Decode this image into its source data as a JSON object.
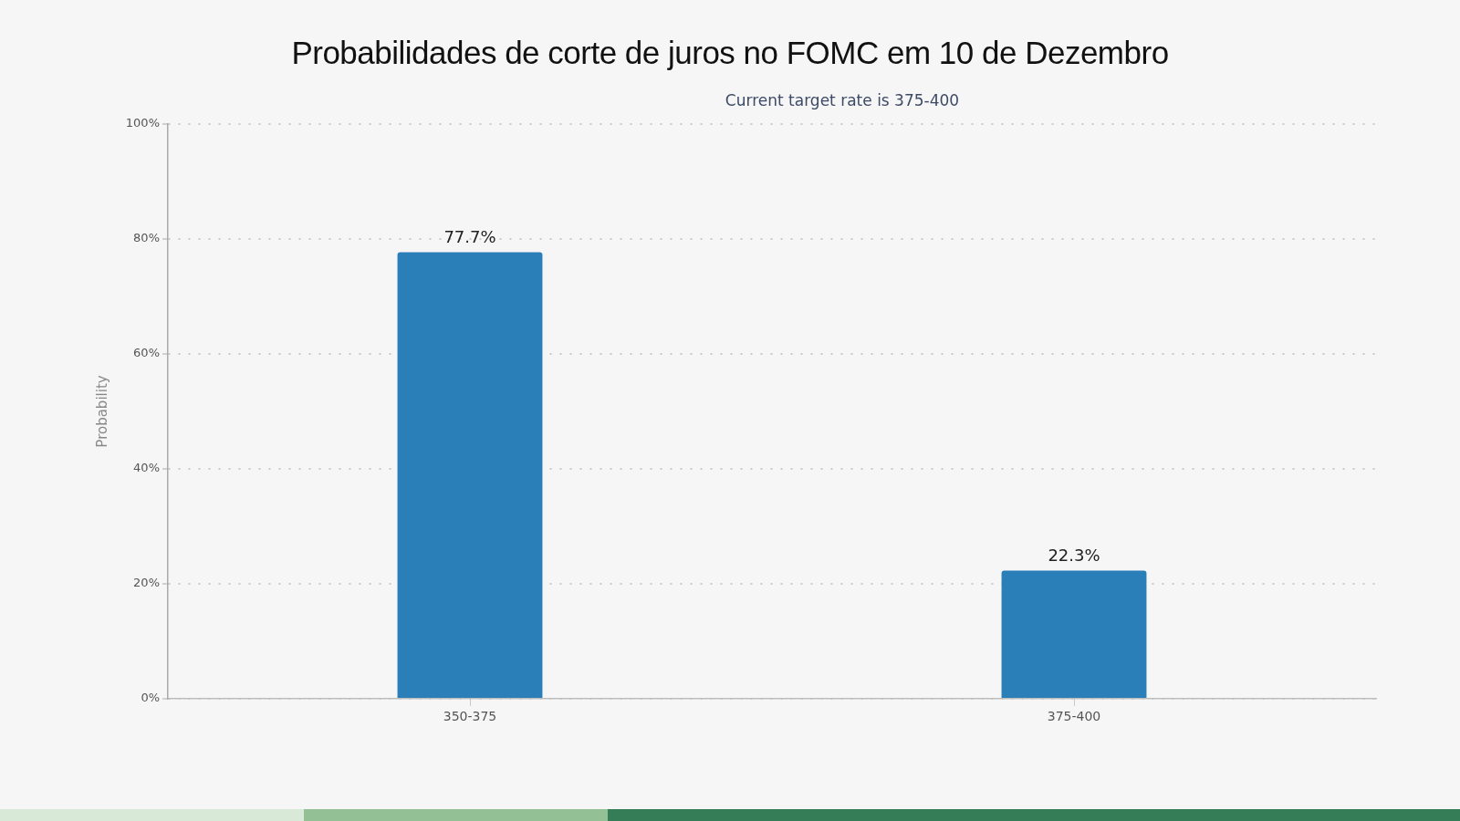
{
  "chart_data": {
    "type": "bar",
    "title": "Probabilidades de corte de juros no FOMC em 10 de Dezembro",
    "subtitle": "Current target rate is 375-400",
    "ylabel": "Probability",
    "categories": [
      "350-375",
      "375-400"
    ],
    "values": [
      77.7,
      22.3
    ],
    "color": "#2a7fb8",
    "value_labels": [
      "77.7%",
      "22.3%"
    ],
    "ylim": [
      0,
      100
    ],
    "yticks": [
      {
        "value": 0,
        "label": "0%"
      },
      {
        "value": 20,
        "label": "20%"
      },
      {
        "value": 40,
        "label": "40%"
      },
      {
        "value": 60,
        "label": "60%"
      },
      {
        "value": 80,
        "label": "80%"
      },
      {
        "value": 100,
        "label": "100%"
      }
    ],
    "grid": "y",
    "legend": false
  }
}
